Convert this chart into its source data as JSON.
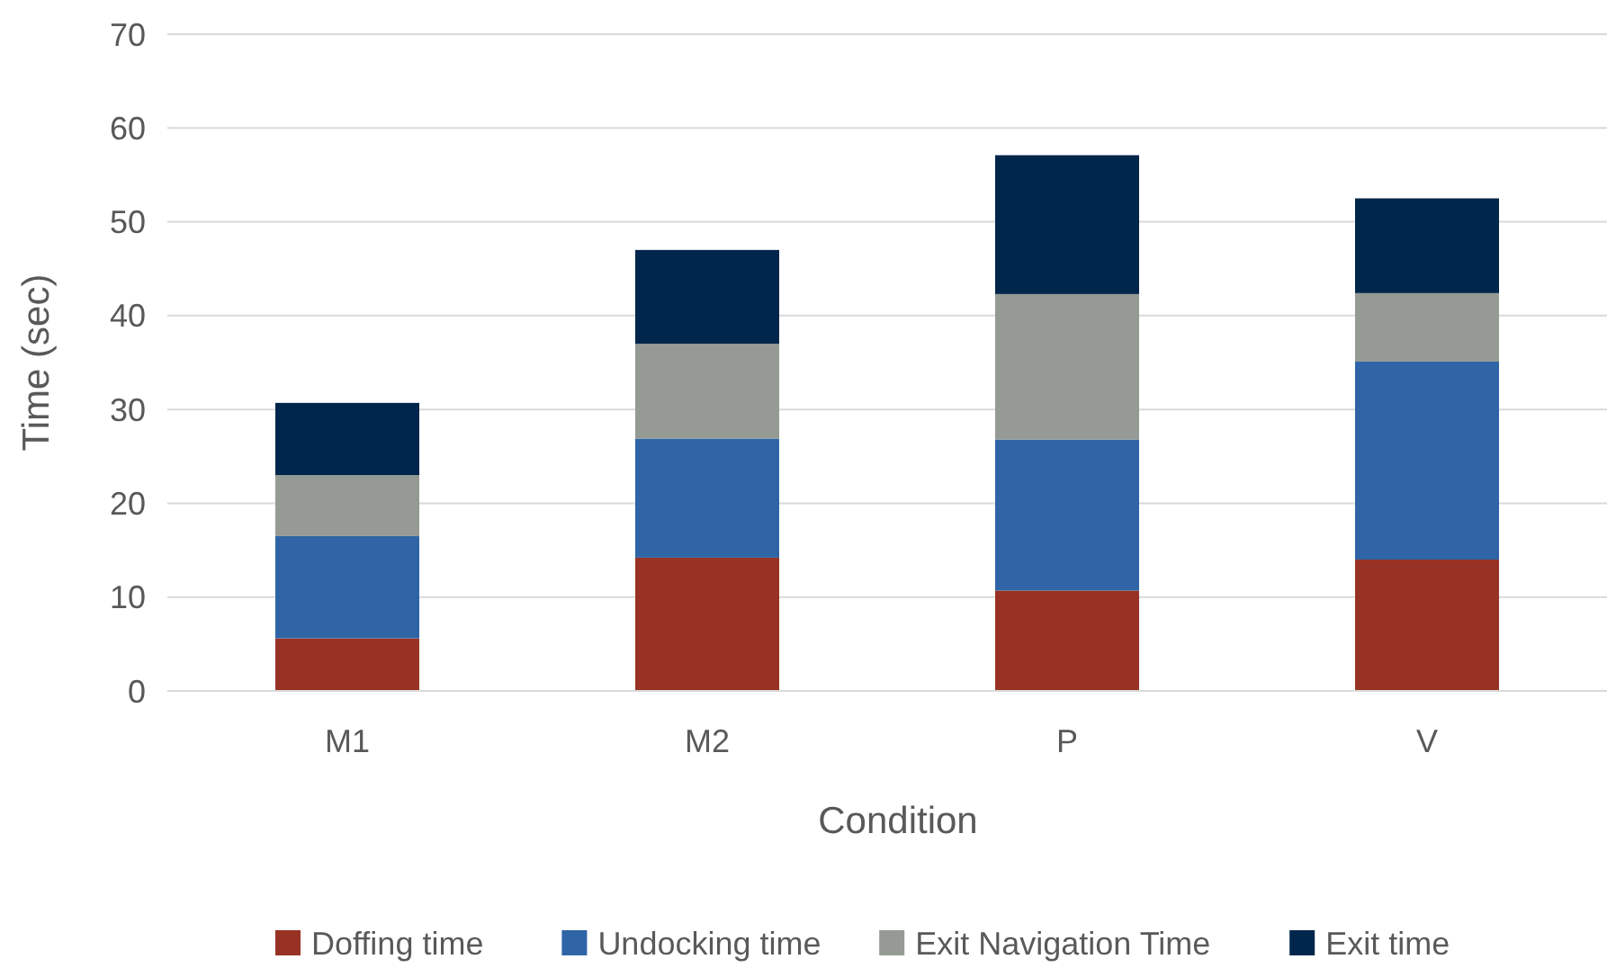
{
  "chart_data": {
    "type": "bar",
    "stacked": true,
    "xlabel": "Condition",
    "ylabel": "Time (sec)",
    "categories": [
      "M1",
      "M2",
      "P",
      "V"
    ],
    "series": [
      {
        "name": "Doffing time",
        "color": "#983224",
        "values": [
          5.6,
          14.2,
          10.7,
          14.0
        ]
      },
      {
        "name": "Undocking time",
        "color": "#2f65a7",
        "values": [
          10.9,
          12.7,
          16.1,
          21.1
        ]
      },
      {
        "name": "Exit Navigation Time",
        "color": "#959a94",
        "values": [
          6.5,
          10.1,
          15.5,
          7.3
        ]
      },
      {
        "name": "Exit time",
        "color": "#00264b",
        "values": [
          7.7,
          10.0,
          14.8,
          10.1
        ]
      }
    ],
    "ylim": [
      0,
      70
    ],
    "yticks": [
      0,
      10,
      20,
      30,
      40,
      50,
      60,
      70
    ],
    "grid": "y",
    "legend": "bottom"
  }
}
